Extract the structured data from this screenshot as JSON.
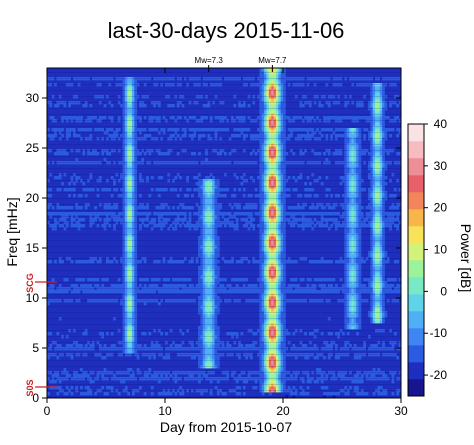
{
  "chart_data": {
    "type": "heatmap",
    "title": "last-30-days 2015-11-06",
    "xlabel": "Day from 2015-10-07",
    "ylabel": "Freq [mHz]",
    "xlim": [
      0,
      30
    ],
    "ylim": [
      0,
      33
    ],
    "x_ticks": [
      "0",
      "10",
      "20",
      "30"
    ],
    "y_ticks": [
      "0",
      "5",
      "10",
      "15",
      "20",
      "25",
      "30"
    ],
    "colorbar": {
      "label": "Power [dB]",
      "range": [
        -25,
        40
      ],
      "ticks": [
        "-20",
        "-10",
        "0",
        "10",
        "20",
        "30",
        "40"
      ],
      "colors": [
        "#16148f",
        "#1e2fc0",
        "#2b5be2",
        "#3f86f4",
        "#4fb0f6",
        "#5fd4e8",
        "#79e8c4",
        "#9bf39c",
        "#d3f27a",
        "#f7e25a",
        "#f8b54a",
        "#f2855a",
        "#e9606a",
        "#ef8e96",
        "#f6bcc0",
        "#fbe2e4"
      ]
    },
    "annotations": [
      {
        "text": "Mw=7.3",
        "day": 13.7
      },
      {
        "text": "Mw=7.7",
        "day": 19.1
      }
    ],
    "markers": [
      {
        "text": "SCG",
        "freq": 11.6
      },
      {
        "text": "S0S",
        "freq": 1.1
      }
    ],
    "bands": [
      {
        "day": 7.0,
        "fmin": 4.5,
        "fmax": 32.0,
        "peak_db": 8,
        "width": 0.35
      },
      {
        "day": 13.7,
        "fmin": 3.0,
        "fmax": 22.0,
        "peak_db": 4,
        "width": 0.5
      },
      {
        "day": 19.1,
        "fmin": 0.5,
        "fmax": 33.0,
        "peak_db": 30,
        "width": 0.6
      },
      {
        "day": 25.9,
        "fmin": 7.0,
        "fmax": 27.0,
        "peak_db": 2,
        "width": 0.45
      },
      {
        "day": 28.0,
        "fmin": 7.5,
        "fmax": 31.5,
        "peak_db": 8,
        "width": 0.4
      }
    ],
    "background_db": -18
  }
}
